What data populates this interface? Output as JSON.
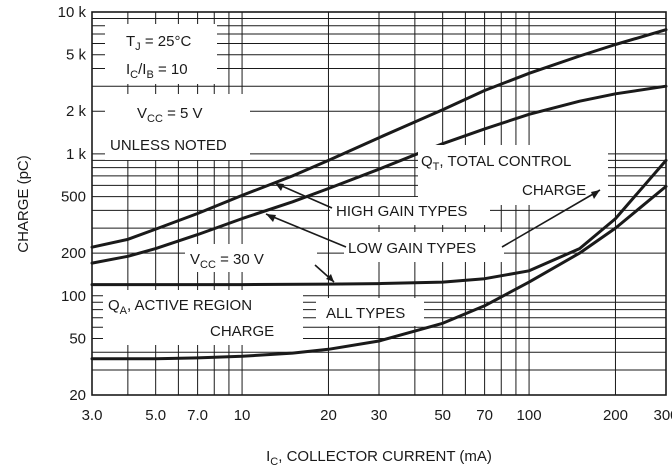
{
  "chart_data": {
    "type": "line",
    "title": "",
    "xlabel": {
      "pre": "I",
      "sub": "C",
      "post": ", COLLECTOR CURRENT (mA)"
    },
    "ylabel": "CHARGE (pC)",
    "x_scale": "log",
    "y_scale": "log",
    "xlim": [
      3,
      300
    ],
    "ylim": [
      20,
      10000
    ],
    "grid": true,
    "x_ticks": [
      {
        "value": 3,
        "label": "3.0"
      },
      {
        "value": 5,
        "label": "5.0"
      },
      {
        "value": 7,
        "label": "7.0"
      },
      {
        "value": 10,
        "label": "10"
      },
      {
        "value": 20,
        "label": "20"
      },
      {
        "value": 30,
        "label": "30"
      },
      {
        "value": 50,
        "label": "50"
      },
      {
        "value": 70,
        "label": "70"
      },
      {
        "value": 100,
        "label": "100"
      },
      {
        "value": 200,
        "label": "200"
      },
      {
        "value": 300,
        "label": "300"
      }
    ],
    "y_ticks": [
      {
        "value": 20,
        "label": "20"
      },
      {
        "value": 50,
        "label": "50"
      },
      {
        "value": 100,
        "label": "100"
      },
      {
        "value": 200,
        "label": "200"
      },
      {
        "value": 500,
        "label": "500"
      },
      {
        "value": 1000,
        "label": "1 k"
      },
      {
        "value": 2000,
        "label": "2 k"
      },
      {
        "value": 5000,
        "label": "5 k"
      },
      {
        "value": 10000,
        "label": "10 k"
      }
    ],
    "series": [
      {
        "x": [
          3,
          4,
          5,
          7,
          10,
          15,
          20,
          30,
          50,
          70,
          100,
          150,
          200,
          300
        ],
        "y": [
          220,
          250,
          295,
          380,
          510,
          700,
          900,
          1300,
          2050,
          2800,
          3700,
          4900,
          5900,
          7500
        ]
      },
      {
        "x": [
          3,
          4,
          5,
          7,
          10,
          15,
          20,
          30,
          50,
          70,
          100,
          150,
          200,
          300
        ],
        "y": [
          170,
          190,
          215,
          270,
          350,
          460,
          570,
          780,
          1180,
          1500,
          1900,
          2350,
          2650,
          3000
        ]
      },
      {
        "x": [
          3,
          5,
          10,
          20,
          30,
          50,
          70,
          100,
          150,
          200,
          300
        ],
        "y": [
          120,
          120,
          120,
          121,
          122,
          125,
          132,
          150,
          215,
          350,
          900
        ]
      },
      {
        "x": [
          3,
          5,
          7,
          10,
          15,
          20,
          30,
          50,
          70,
          100,
          150,
          200,
          300
        ],
        "y": [
          36,
          36,
          36.5,
          37.5,
          39.5,
          42,
          48,
          64,
          85,
          125,
          200,
          300,
          590
        ]
      }
    ],
    "annotations": {
      "tj_pre": "T",
      "tj_sub": "J",
      "tj_post": " = 25°C",
      "ic_pre": "I",
      "ic_sub1": "C",
      "ic_mid": "/I",
      "ic_sub2": "B",
      "ic_post": " = 10",
      "vcc5_pre": "V",
      "vcc5_sub": "CC",
      "vcc5_post": " = 5 V",
      "unless_noted": "UNLESS NOTED",
      "qt_pre": "Q",
      "qt_sub": "T",
      "qt_post": ", TOTAL CONTROL",
      "qt_line2": "CHARGE",
      "high_gain": "HIGH GAIN TYPES",
      "low_gain": "LOW GAIN TYPES",
      "vcc30_pre": "V",
      "vcc30_sub": "CC",
      "vcc30_post": " = 30 V",
      "qa_pre": "Q",
      "qa_sub": "A",
      "qa_post": ", ACTIVE REGION",
      "qa_line2": "CHARGE",
      "all_types": "ALL TYPES"
    }
  }
}
